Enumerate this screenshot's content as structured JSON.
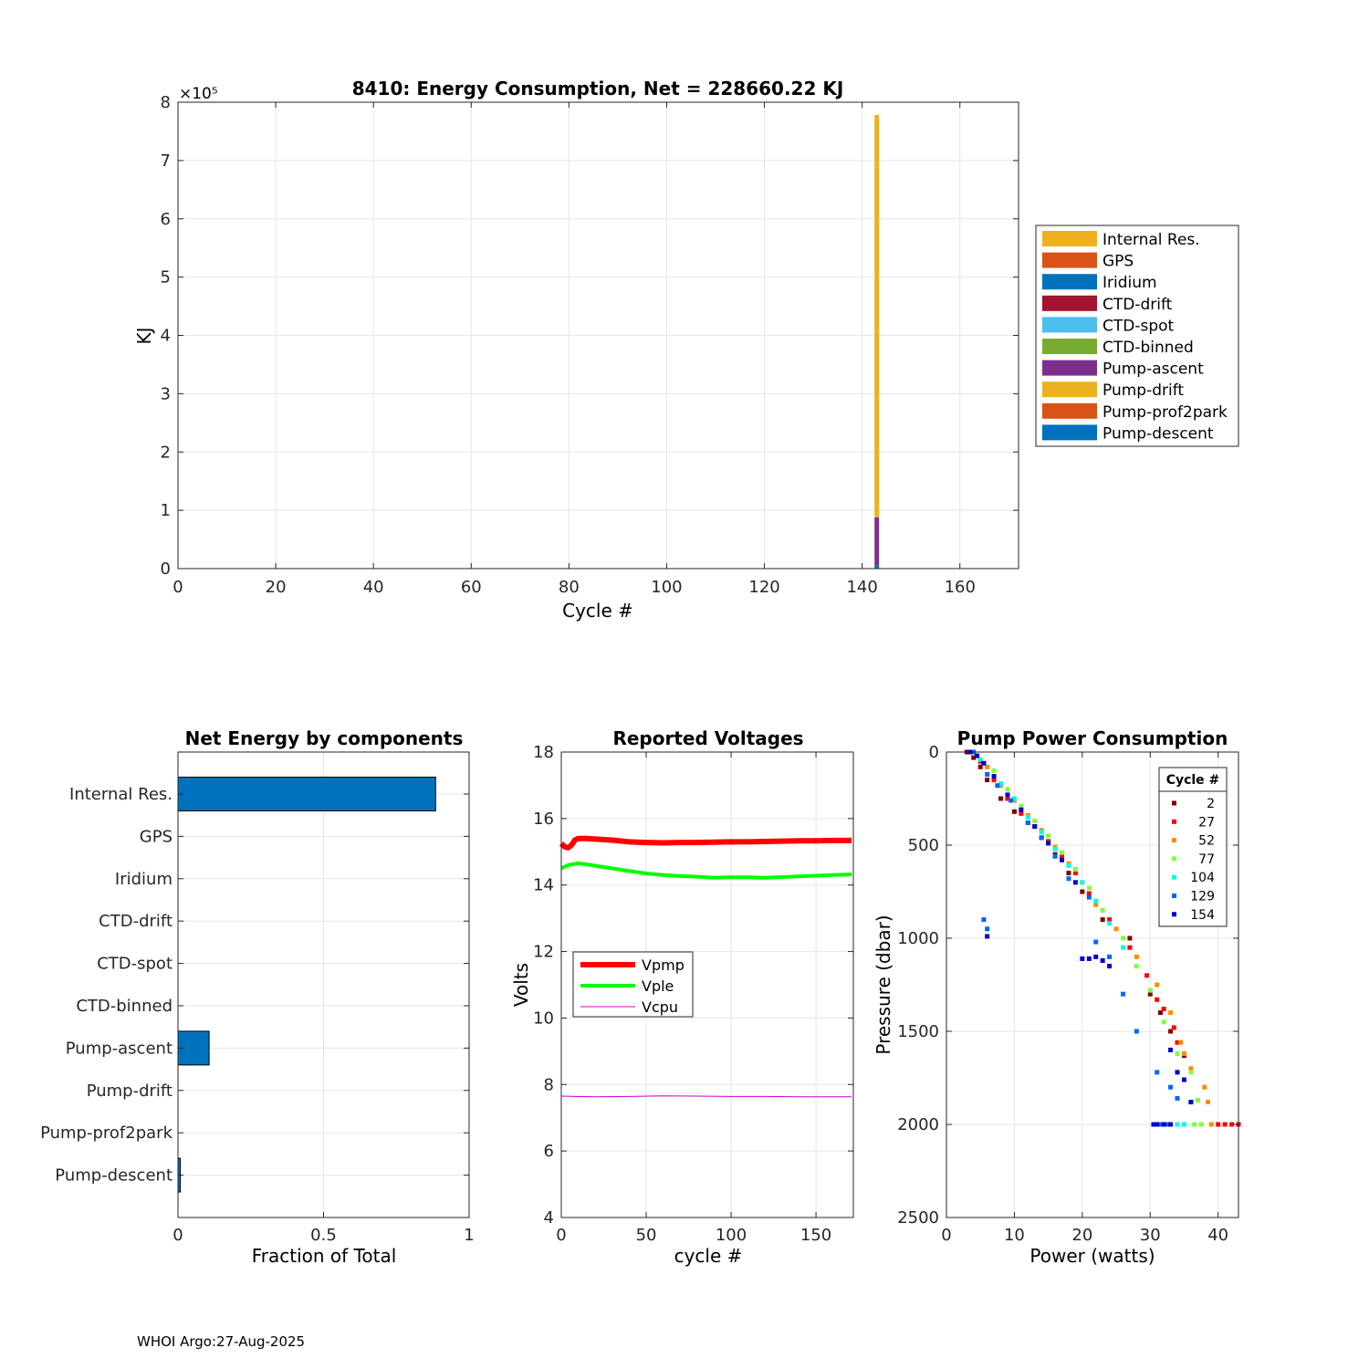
{
  "footer": "WHOI Argo:27-Aug-2025",
  "chart_data": [
    {
      "id": "energy",
      "type": "bar",
      "stacked": true,
      "title": "8410: Energy Consumption,  Net = 228660.22 KJ",
      "xlabel": "Cycle #",
      "ylabel": "KJ",
      "ylabel_exponent": "×10⁵",
      "xlim": [
        0,
        172
      ],
      "ylim": [
        0,
        8
      ],
      "xticks": [
        "0",
        "20",
        "40",
        "60",
        "80",
        "100",
        "120",
        "140",
        "160"
      ],
      "yticks": [
        "0",
        "1",
        "2",
        "3",
        "4",
        "5",
        "6",
        "7",
        "8"
      ],
      "grid": true,
      "legend_position": "outside-right",
      "x": 143,
      "bar_width": 0.8,
      "series": [
        {
          "name": "Internal Res.",
          "color": "#EDB120",
          "value": 6.9
        },
        {
          "name": "GPS",
          "color": "#D95319",
          "value": 0
        },
        {
          "name": "Iridium",
          "color": "#0072BD",
          "value": 0
        },
        {
          "name": "CTD-drift",
          "color": "#A2142F",
          "value": 0
        },
        {
          "name": "CTD-spot",
          "color": "#4DBEEE",
          "value": 0
        },
        {
          "name": "CTD-binned",
          "color": "#77AC30",
          "value": 0
        },
        {
          "name": "Pump-ascent",
          "color": "#7E2F8E",
          "value": 0.82
        },
        {
          "name": "Pump-drift",
          "color": "#EDB120",
          "value": 0
        },
        {
          "name": "Pump-prof2park",
          "color": "#D95319",
          "value": 0
        },
        {
          "name": "Pump-descent",
          "color": "#0072BD",
          "value": 0.06
        }
      ]
    },
    {
      "id": "components",
      "type": "bar",
      "orientation": "horizontal",
      "title": "Net Energy by components",
      "xlabel": "Fraction of Total",
      "ylabel": "",
      "xlim": [
        0,
        1
      ],
      "xticks": [
        "0",
        "0.5",
        "1"
      ],
      "grid": true,
      "bar_color": "#0072BD",
      "categories": [
        "Internal Res.",
        "GPS",
        "Iridium",
        "CTD-drift",
        "CTD-spot",
        "CTD-binned",
        "Pump-ascent",
        "Pump-drift",
        "Pump-prof2park",
        "Pump-descent"
      ],
      "values": [
        0.885,
        0,
        0,
        0,
        0,
        0,
        0.107,
        0,
        0,
        0.008
      ]
    },
    {
      "id": "voltages",
      "type": "line",
      "title": "Reported Voltages",
      "xlabel": "cycle #",
      "ylabel": "Volts",
      "xlim": [
        0,
        172
      ],
      "ylim": [
        4,
        18
      ],
      "xticks": [
        "0",
        "50",
        "100",
        "150"
      ],
      "yticks": [
        "4",
        "6",
        "8",
        "10",
        "12",
        "14",
        "16",
        "18"
      ],
      "grid": true,
      "legend_position": "middle-left",
      "series": [
        {
          "name": "Vpmp",
          "color": "#FF0000",
          "width": 6,
          "x": [
            0,
            2,
            4,
            6,
            8,
            10,
            15,
            20,
            30,
            40,
            50,
            60,
            70,
            80,
            90,
            100,
            110,
            120,
            130,
            140,
            150,
            160,
            171
          ],
          "y": [
            15.25,
            15.15,
            15.12,
            15.2,
            15.35,
            15.4,
            15.4,
            15.38,
            15.35,
            15.3,
            15.28,
            15.27,
            15.28,
            15.28,
            15.29,
            15.3,
            15.3,
            15.31,
            15.32,
            15.33,
            15.33,
            15.34,
            15.34
          ]
        },
        {
          "name": "Vple",
          "color": "#00FF00",
          "width": 4,
          "x": [
            0,
            2,
            4,
            6,
            10,
            15,
            20,
            30,
            40,
            50,
            60,
            70,
            80,
            90,
            100,
            110,
            120,
            130,
            140,
            150,
            160,
            171
          ],
          "y": [
            14.5,
            14.55,
            14.6,
            14.62,
            14.65,
            14.62,
            14.58,
            14.5,
            14.42,
            14.35,
            14.3,
            14.27,
            14.25,
            14.22,
            14.23,
            14.23,
            14.22,
            14.24,
            14.26,
            14.28,
            14.3,
            14.32
          ]
        },
        {
          "name": "Vcpu",
          "color": "#CC00CC",
          "width": 1,
          "x": [
            0,
            20,
            40,
            60,
            80,
            100,
            120,
            140,
            160,
            171
          ],
          "y": [
            7.65,
            7.63,
            7.64,
            7.66,
            7.65,
            7.64,
            7.64,
            7.63,
            7.63,
            7.63
          ]
        }
      ]
    },
    {
      "id": "pump",
      "type": "scatter",
      "title": "Pump Power Consumption",
      "xlabel": "Power (watts)",
      "ylabel": "Pressure (dbar)",
      "xlim": [
        0,
        43
      ],
      "ylim": [
        0,
        2500
      ],
      "y_reversed": true,
      "xticks": [
        "0",
        "10",
        "20",
        "30",
        "40"
      ],
      "yticks": [
        "0",
        "500",
        "1000",
        "1500",
        "2000",
        "2500"
      ],
      "grid": true,
      "legend_title": "Cycle #",
      "legend_position": "top-right",
      "groups": [
        {
          "name": "2",
          "color": "#800000"
        },
        {
          "name": "27",
          "color": "#FF0000"
        },
        {
          "name": "52",
          "color": "#FF8C00"
        },
        {
          "name": "77",
          "color": "#80FF40"
        },
        {
          "name": "104",
          "color": "#00FFE0"
        },
        {
          "name": "129",
          "color": "#0066FF"
        },
        {
          "name": "154",
          "color": "#0000CC"
        }
      ],
      "points": [
        {
          "g": 0,
          "x": [
            3,
            4,
            5,
            6,
            8,
            10,
            12,
            14,
            16,
            18,
            20,
            23,
            27,
            30,
            31.5,
            33,
            35,
            36
          ],
          "y": [
            0,
            30,
            80,
            150,
            250,
            320,
            380,
            460,
            550,
            650,
            750,
            900,
            1000,
            1300,
            1400,
            1500,
            1630,
            1880
          ]
        },
        {
          "g": 1,
          "x": [
            5,
            7,
            9,
            11,
            13,
            15,
            17,
            19,
            21,
            24,
            27,
            29.5,
            31,
            32,
            33.5,
            34,
            40,
            41,
            42,
            43
          ],
          "y": [
            50,
            150,
            250,
            330,
            400,
            480,
            560,
            650,
            760,
            900,
            1050,
            1200,
            1330,
            1380,
            1480,
            1560,
            2000,
            2000,
            2000,
            2000
          ]
        },
        {
          "g": 2,
          "x": [
            6,
            8,
            10,
            12,
            14,
            16,
            18,
            20,
            22,
            25,
            28,
            31,
            33,
            34.5,
            35,
            36,
            38,
            38.5,
            39
          ],
          "y": [
            80,
            180,
            260,
            340,
            420,
            510,
            600,
            700,
            820,
            950,
            1100,
            1250,
            1400,
            1560,
            1620,
            1700,
            1800,
            1880,
            2000
          ]
        },
        {
          "g": 3,
          "x": [
            7,
            9,
            11,
            13,
            15,
            17,
            19,
            21,
            23,
            26,
            28,
            30,
            32,
            34,
            36,
            37,
            35,
            36.5,
            37.5
          ],
          "y": [
            100,
            200,
            290,
            370,
            450,
            540,
            630,
            730,
            850,
            1000,
            1150,
            1280,
            1450,
            1620,
            1720,
            1870,
            2000,
            2000,
            2000
          ]
        },
        {
          "g": 4,
          "x": [
            5,
            8,
            10,
            12,
            14,
            16,
            18,
            20,
            22,
            24,
            26,
            34,
            35
          ],
          "y": [
            40,
            170,
            250,
            350,
            430,
            520,
            610,
            700,
            800,
            920,
            1050,
            2000,
            2000
          ]
        },
        {
          "g": 5,
          "x": [
            4,
            6,
            7.5,
            9.5,
            12,
            14,
            16,
            18,
            21,
            22,
            24,
            26,
            28,
            31,
            33,
            34,
            6,
            5.5,
            30.5,
            31.5,
            32.5
          ],
          "y": [
            0,
            120,
            180,
            260,
            380,
            460,
            560,
            680,
            780,
            1020,
            1100,
            1300,
            1500,
            1720,
            1800,
            1860,
            950,
            900,
            2000,
            2000,
            2000
          ]
        },
        {
          "g": 6,
          "x": [
            3.5,
            4.5,
            5.5,
            7,
            9,
            11,
            13,
            15,
            17,
            19,
            20,
            21,
            22,
            23,
            24,
            33,
            34,
            35,
            36,
            6,
            30.5,
            31,
            32,
            33
          ],
          "y": [
            0,
            20,
            60,
            130,
            230,
            310,
            400,
            490,
            580,
            700,
            1110,
            1110,
            1100,
            1120,
            1150,
            1600,
            1720,
            1760,
            1880,
            990,
            2000,
            2000,
            2000,
            2000
          ]
        }
      ]
    }
  ]
}
